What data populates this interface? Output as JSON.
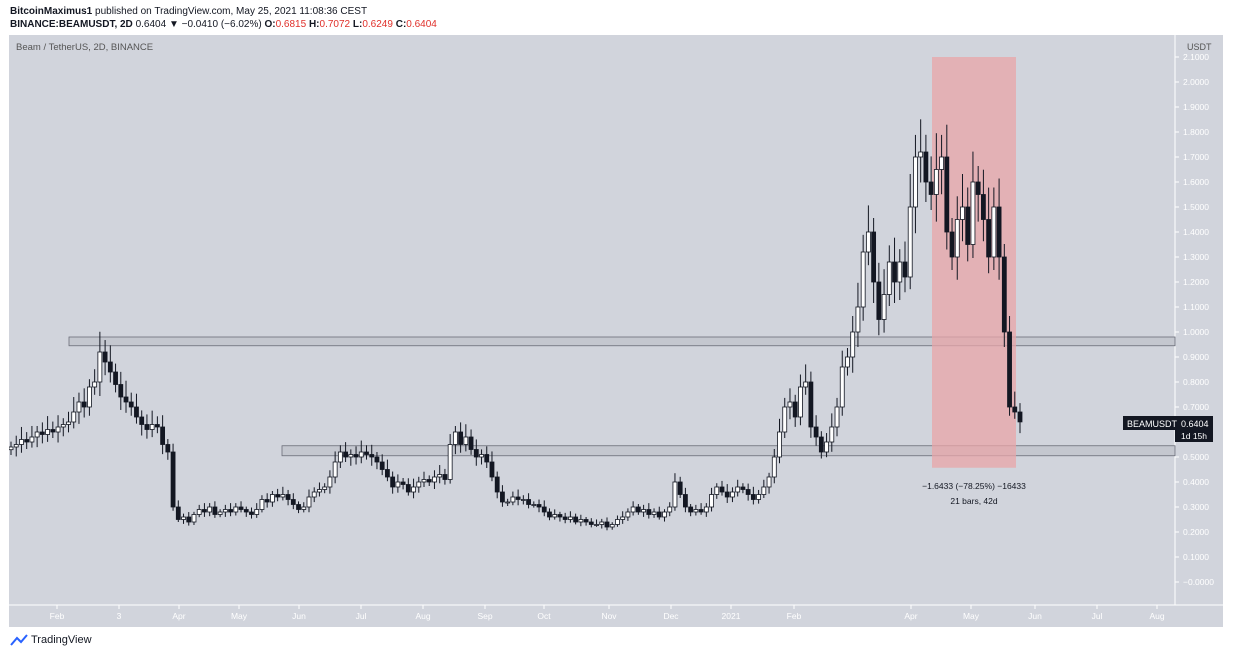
{
  "header": {
    "author": "BitcoinMaximus1",
    "published": "published on TradingView.com, May 25, 2021 11:08:36 CEST",
    "symbol": "BINANCE:BEAMUSDT, 2D",
    "last": "0.6404",
    "change": "▼ −0.0410 (−6.02%)",
    "o_label": "O:",
    "o_value": "0.6815",
    "h_label": "H:",
    "h_value": "0.7072",
    "l_label": "L:",
    "l_value": "0.6249",
    "c_label": "C:",
    "c_value": "0.6404"
  },
  "chart_title": "Beam / TetherUS, 2D, BINANCE",
  "price_axis_unit": "USDT",
  "price_ticks": [
    "2.1000",
    "2.0000",
    "1.9000",
    "1.8000",
    "1.7000",
    "1.6000",
    "1.5000",
    "1.4000",
    "1.3000",
    "1.2000",
    "1.1000",
    "1.0000",
    "0.9000",
    "0.8000",
    "0.7000",
    "0.6000",
    "0.5000",
    "0.4000",
    "0.3000",
    "0.2000",
    "0.1000",
    "−0.0000"
  ],
  "time_ticks": [
    "Feb",
    "3",
    "Apr",
    "May",
    "Jun",
    "Jul",
    "Aug",
    "Sep",
    "Oct",
    "Nov",
    "Dec",
    "2021",
    "Feb",
    "Apr",
    "May",
    "Jun",
    "Jul",
    "Aug"
  ],
  "price_label": {
    "symbol": "BEAMUSDT",
    "value": "0.6404",
    "countdown": "1d 15h"
  },
  "measure": {
    "line1": "−1.6433 (−78.25%) −16433",
    "line2": "21 bars, 42d"
  },
  "footer": {
    "brand": "TradingView"
  },
  "colors": {
    "background": "#d1d4dc",
    "candle": "#131722",
    "zone_fill": "#bfc2c9",
    "measure_fill": "#e8a5a8",
    "price_label_bg": "#131722"
  },
  "chart_data": {
    "type": "candlestick",
    "ylim": [
      -0.05,
      2.1
    ],
    "horizontal_zones": [
      {
        "low": 0.945,
        "high": 0.98
      },
      {
        "low": 0.505,
        "high": 0.545
      }
    ],
    "measure_range": {
      "from": 2.1,
      "to": 0.457
    },
    "closes": [
      0.54,
      0.55,
      0.57,
      0.56,
      0.58,
      0.6,
      0.59,
      0.61,
      0.6,
      0.62,
      0.63,
      0.64,
      0.68,
      0.72,
      0.7,
      0.78,
      0.8,
      0.92,
      0.88,
      0.84,
      0.79,
      0.74,
      0.72,
      0.7,
      0.66,
      0.63,
      0.61,
      0.63,
      0.62,
      0.55,
      0.52,
      0.3,
      0.25,
      0.26,
      0.24,
      0.27,
      0.29,
      0.28,
      0.3,
      0.27,
      0.28,
      0.29,
      0.28,
      0.3,
      0.29,
      0.28,
      0.27,
      0.29,
      0.33,
      0.32,
      0.35,
      0.34,
      0.35,
      0.33,
      0.31,
      0.29,
      0.3,
      0.34,
      0.36,
      0.37,
      0.38,
      0.42,
      0.48,
      0.52,
      0.5,
      0.51,
      0.5,
      0.52,
      0.51,
      0.5,
      0.48,
      0.45,
      0.42,
      0.38,
      0.4,
      0.39,
      0.36,
      0.38,
      0.4,
      0.41,
      0.4,
      0.42,
      0.43,
      0.41,
      0.55,
      0.6,
      0.55,
      0.58,
      0.53,
      0.5,
      0.51,
      0.48,
      0.42,
      0.36,
      0.32,
      0.32,
      0.34,
      0.33,
      0.33,
      0.31,
      0.31,
      0.3,
      0.28,
      0.26,
      0.27,
      0.26,
      0.25,
      0.26,
      0.24,
      0.25,
      0.24,
      0.23,
      0.23,
      0.24,
      0.22,
      0.23,
      0.25,
      0.26,
      0.28,
      0.3,
      0.28,
      0.29,
      0.27,
      0.28,
      0.26,
      0.28,
      0.3,
      0.4,
      0.35,
      0.3,
      0.28,
      0.29,
      0.28,
      0.3,
      0.35,
      0.38,
      0.36,
      0.34,
      0.36,
      0.38,
      0.37,
      0.35,
      0.33,
      0.35,
      0.38,
      0.42,
      0.5,
      0.6,
      0.7,
      0.72,
      0.66,
      0.78,
      0.8,
      0.62,
      0.58,
      0.52,
      0.56,
      0.62,
      0.7,
      0.86,
      0.9,
      1.0,
      1.1,
      1.32,
      1.4,
      1.2,
      1.05,
      1.15,
      1.28,
      1.2,
      1.28,
      1.22,
      1.5,
      1.7,
      1.72,
      1.6,
      1.55,
      1.65,
      1.7,
      1.4,
      1.3,
      1.45,
      1.5,
      1.35,
      1.6,
      1.55,
      1.45,
      1.3,
      1.5,
      1.3,
      1.0,
      0.7,
      0.68,
      0.6404
    ]
  }
}
